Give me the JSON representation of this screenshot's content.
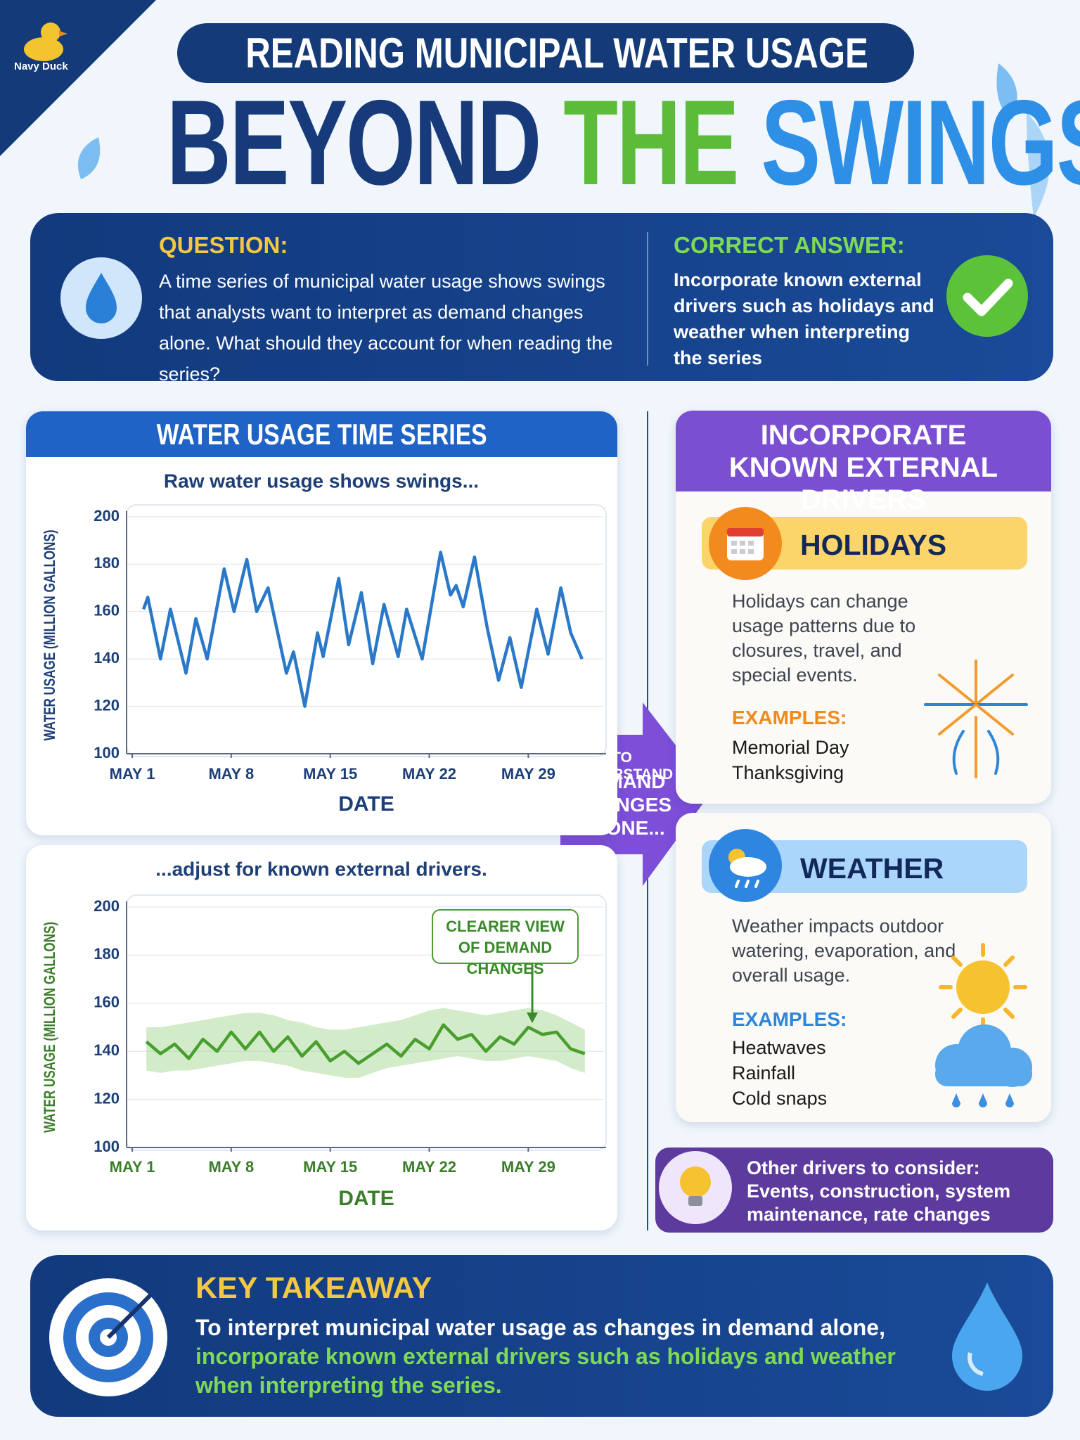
{
  "brand": "Navy Duck",
  "header": {
    "kicker": "READING MUNICIPAL WATER USAGE",
    "title": [
      "BEYOND",
      "THE",
      "SWINGS"
    ]
  },
  "question": {
    "label": "QUESTION:",
    "text": "A time series of municipal water usage shows swings that analysts want to interpret as demand changes alone. What should they account for when reading the series?"
  },
  "answer": {
    "label": "CORRECT ANSWER:",
    "text": "Incorporate known external drivers such as holidays and weather when interpreting the series"
  },
  "chart_panel": {
    "title": "WATER USAGE TIME SERIES"
  },
  "chart_data": [
    {
      "type": "line",
      "subtitle": "Raw water usage shows swings...",
      "x_label": "DATE",
      "y_label": "WATER USAGE (MILLION GALLONS)",
      "label_color": "#1d3f78",
      "x": [
        1.8,
        2.1,
        3.0,
        3.7,
        4.8,
        5.5,
        6.3,
        7.5,
        8.2,
        9.1,
        9.8,
        10.6,
        11.9,
        12.4,
        13.2,
        14.1,
        14.5,
        15.6,
        16.3,
        17.2,
        18.0,
        18.8,
        19.8,
        20.4,
        21.5,
        22.8,
        23.5,
        23.9,
        24.4,
        25.2,
        26.1,
        26.9,
        27.7,
        28.5,
        29.6,
        30.4,
        31.3,
        32.0,
        32.8
      ],
      "series": [
        {
          "color": "#2a78c8",
          "values": [
            161,
            166,
            140,
            161,
            134,
            157,
            140,
            178,
            160,
            182,
            160,
            170,
            134,
            143,
            120,
            151,
            141,
            174,
            146,
            168,
            138,
            163,
            141,
            161,
            140,
            185,
            167,
            171,
            162,
            183,
            153,
            131,
            149,
            128,
            161,
            142,
            170,
            151,
            140
          ]
        }
      ],
      "xlim": [
        0.6,
        34.5
      ],
      "ylim": [
        100,
        200
      ],
      "xticks": [
        {
          "value": 1,
          "label": "MAY 1"
        },
        {
          "value": 8,
          "label": "MAY 8"
        },
        {
          "value": 15,
          "label": "MAY 15"
        },
        {
          "value": 22,
          "label": "MAY 22"
        },
        {
          "value": 29,
          "label": "MAY 29"
        }
      ],
      "yticks": [
        100,
        120,
        140,
        160,
        180,
        200
      ],
      "grid": true
    },
    {
      "type": "line",
      "subtitle": "...adjust for known external drivers.",
      "x_label": "DATE",
      "y_label": "WATER USAGE (MILLION GALLONS)",
      "label_color": "#3a7d2a",
      "annotation": "CLEARER VIEW OF DEMAND CHANGES",
      "x": [
        2,
        3,
        4,
        5,
        6,
        7,
        8,
        9,
        10,
        11,
        12,
        13,
        14,
        15,
        16,
        17,
        18,
        19,
        20,
        21,
        22,
        23,
        24,
        25,
        26,
        27,
        28,
        29,
        30,
        31,
        32,
        33
      ],
      "series": [
        {
          "color": "#4a9e2e",
          "values": [
            144,
            139,
            143,
            137,
            145,
            140,
            148,
            141,
            148,
            140,
            146,
            138,
            144,
            136,
            140,
            135,
            139,
            143,
            138,
            145,
            141,
            151,
            145,
            147,
            140,
            146,
            143,
            150,
            147,
            148,
            141,
            139
          ]
        }
      ],
      "band": {
        "color": "#8fd07a",
        "low": [
          132,
          131,
          132,
          132,
          133,
          134,
          135,
          136,
          136,
          135,
          134,
          132,
          131,
          130,
          129,
          129,
          131,
          133,
          134,
          135,
          136,
          137,
          138,
          137,
          136,
          136,
          137,
          138,
          137,
          136,
          133,
          131
        ],
        "high": [
          150,
          150,
          151,
          152,
          153,
          154,
          155,
          156,
          156,
          155,
          153,
          152,
          150,
          149,
          149,
          150,
          151,
          152,
          153,
          155,
          157,
          158,
          157,
          156,
          155,
          156,
          157,
          158,
          157,
          155,
          152,
          149
        ]
      },
      "xlim": [
        0.6,
        34.5
      ],
      "ylim": [
        100,
        200
      ],
      "xticks": [
        {
          "value": 1,
          "label": "MAY 1"
        },
        {
          "value": 8,
          "label": "MAY 8"
        },
        {
          "value": 15,
          "label": "MAY 15"
        },
        {
          "value": 22,
          "label": "MAY 22"
        },
        {
          "value": 29,
          "label": "MAY 29"
        }
      ],
      "yticks": [
        100,
        120,
        140,
        160,
        180,
        200
      ],
      "grid": true
    }
  ],
  "bridge": {
    "lead": "TO UNDERSTAND",
    "text": "DEMAND CHANGES ALONE..."
  },
  "drivers": {
    "title": "INCORPORATE KNOWN EXTERNAL DRIVERS",
    "items": [
      {
        "title": "HOLIDAYS",
        "text": "Holidays can change usage patterns due to closures, travel, and special events.",
        "examples_label": "EXAMPLES:",
        "examples": [
          "Memorial Day",
          "Thanksgiving"
        ]
      },
      {
        "title": "WEATHER",
        "text": "Weather impacts outdoor watering, evaporation, and overall usage.",
        "examples_label": "EXAMPLES:",
        "examples": [
          "Heatwaves",
          "Rainfall",
          "Cold snaps"
        ]
      }
    ]
  },
  "other_drivers": {
    "label": "Other drivers to consider:",
    "text": "Events, construction, system maintenance, rate changes"
  },
  "takeaway": {
    "label": "KEY TAKEAWAY",
    "text": "To interpret municipal water usage as changes in demand alone,",
    "highlight": "incorporate known external drivers such as holidays and weather when interpreting the series."
  }
}
